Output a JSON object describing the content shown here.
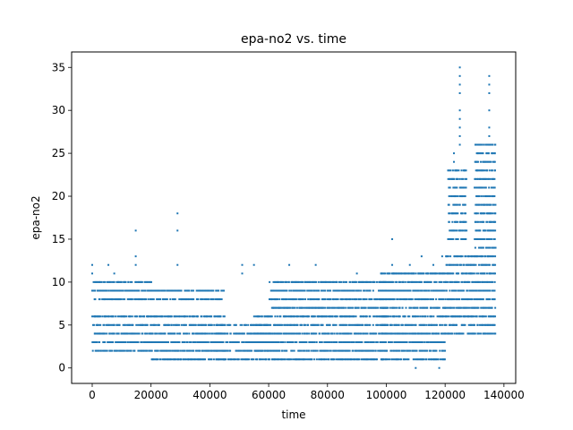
{
  "chart_data": {
    "type": "scatter",
    "title": "epa-no2 vs. time",
    "xlabel": "time",
    "ylabel": "epa-no2",
    "xlim": [
      -7000,
      144000
    ],
    "ylim": [
      -1.8,
      36.8
    ],
    "xticks": [
      0,
      20000,
      40000,
      60000,
      80000,
      100000,
      120000,
      140000
    ],
    "yticks": [
      0,
      5,
      10,
      15,
      20,
      25,
      30,
      35
    ],
    "grid": false,
    "marker_color": "#1f77b4",
    "point_clusters": [
      {
        "x_range": [
          0,
          20000
        ],
        "y_values": [
          3,
          4,
          5,
          6
        ]
      },
      {
        "x_range": [
          0,
          20000
        ],
        "y_values": [
          2,
          8,
          9,
          10
        ]
      },
      {
        "x_range": [
          20000,
          45000
        ],
        "y_values": [
          2,
          3,
          4,
          5,
          6
        ]
      },
      {
        "x_range": [
          20000,
          45000
        ],
        "y_values": [
          1,
          8,
          9
        ]
      },
      {
        "x_range": [
          42000,
          60000
        ],
        "y_values": [
          1,
          2,
          3,
          4,
          5
        ]
      },
      {
        "x_range": [
          55000,
          100000
        ],
        "y_values": [
          2,
          3,
          4,
          5,
          6
        ]
      },
      {
        "x_range": [
          60000,
          100000
        ],
        "y_values": [
          1,
          7,
          8,
          9,
          10
        ]
      },
      {
        "x_range": [
          98000,
          120000
        ],
        "y_values": [
          2,
          3,
          4,
          5,
          6
        ]
      },
      {
        "x_range": [
          98000,
          120000
        ],
        "y_values": [
          1,
          7,
          8,
          9,
          10,
          11
        ]
      },
      {
        "x_range": [
          120000,
          137000
        ],
        "y_values": [
          4,
          5,
          6,
          7,
          8,
          9,
          10,
          11,
          12,
          13
        ]
      },
      {
        "x_range": [
          121000,
          127000
        ],
        "y_values": [
          15,
          16,
          17,
          18,
          19,
          20,
          21,
          22,
          23
        ]
      },
      {
        "x_range": [
          130000,
          137000
        ],
        "y_values": [
          14,
          15,
          16,
          17,
          18,
          19,
          20,
          21,
          22,
          23,
          24,
          25,
          26
        ]
      }
    ],
    "outliers": [
      {
        "x": 0,
        "y": 12
      },
      {
        "x": 0,
        "y": 11
      },
      {
        "x": 5500,
        "y": 12
      },
      {
        "x": 7500,
        "y": 11
      },
      {
        "x": 14800,
        "y": 16
      },
      {
        "x": 14800,
        "y": 13
      },
      {
        "x": 14800,
        "y": 12
      },
      {
        "x": 29000,
        "y": 18
      },
      {
        "x": 29000,
        "y": 16
      },
      {
        "x": 29000,
        "y": 12
      },
      {
        "x": 51000,
        "y": 12
      },
      {
        "x": 51000,
        "y": 11
      },
      {
        "x": 55000,
        "y": 12
      },
      {
        "x": 67000,
        "y": 12
      },
      {
        "x": 76000,
        "y": 12
      },
      {
        "x": 90000,
        "y": 11
      },
      {
        "x": 102000,
        "y": 15
      },
      {
        "x": 102000,
        "y": 12
      },
      {
        "x": 108000,
        "y": 12
      },
      {
        "x": 112000,
        "y": 13
      },
      {
        "x": 116000,
        "y": 12
      },
      {
        "x": 119000,
        "y": 13
      },
      {
        "x": 110000,
        "y": 0
      },
      {
        "x": 118000,
        "y": 0
      },
      {
        "x": 123000,
        "y": 25
      },
      {
        "x": 123000,
        "y": 24
      },
      {
        "x": 125000,
        "y": 35
      },
      {
        "x": 125000,
        "y": 34
      },
      {
        "x": 125000,
        "y": 33
      },
      {
        "x": 125000,
        "y": 32
      },
      {
        "x": 125000,
        "y": 30
      },
      {
        "x": 125000,
        "y": 29
      },
      {
        "x": 125000,
        "y": 28
      },
      {
        "x": 125000,
        "y": 27
      },
      {
        "x": 125000,
        "y": 26
      },
      {
        "x": 135000,
        "y": 34
      },
      {
        "x": 135000,
        "y": 33
      },
      {
        "x": 135000,
        "y": 32
      },
      {
        "x": 135000,
        "y": 30
      },
      {
        "x": 135000,
        "y": 28
      },
      {
        "x": 135000,
        "y": 27
      },
      {
        "x": 135000,
        "y": 26
      }
    ]
  }
}
